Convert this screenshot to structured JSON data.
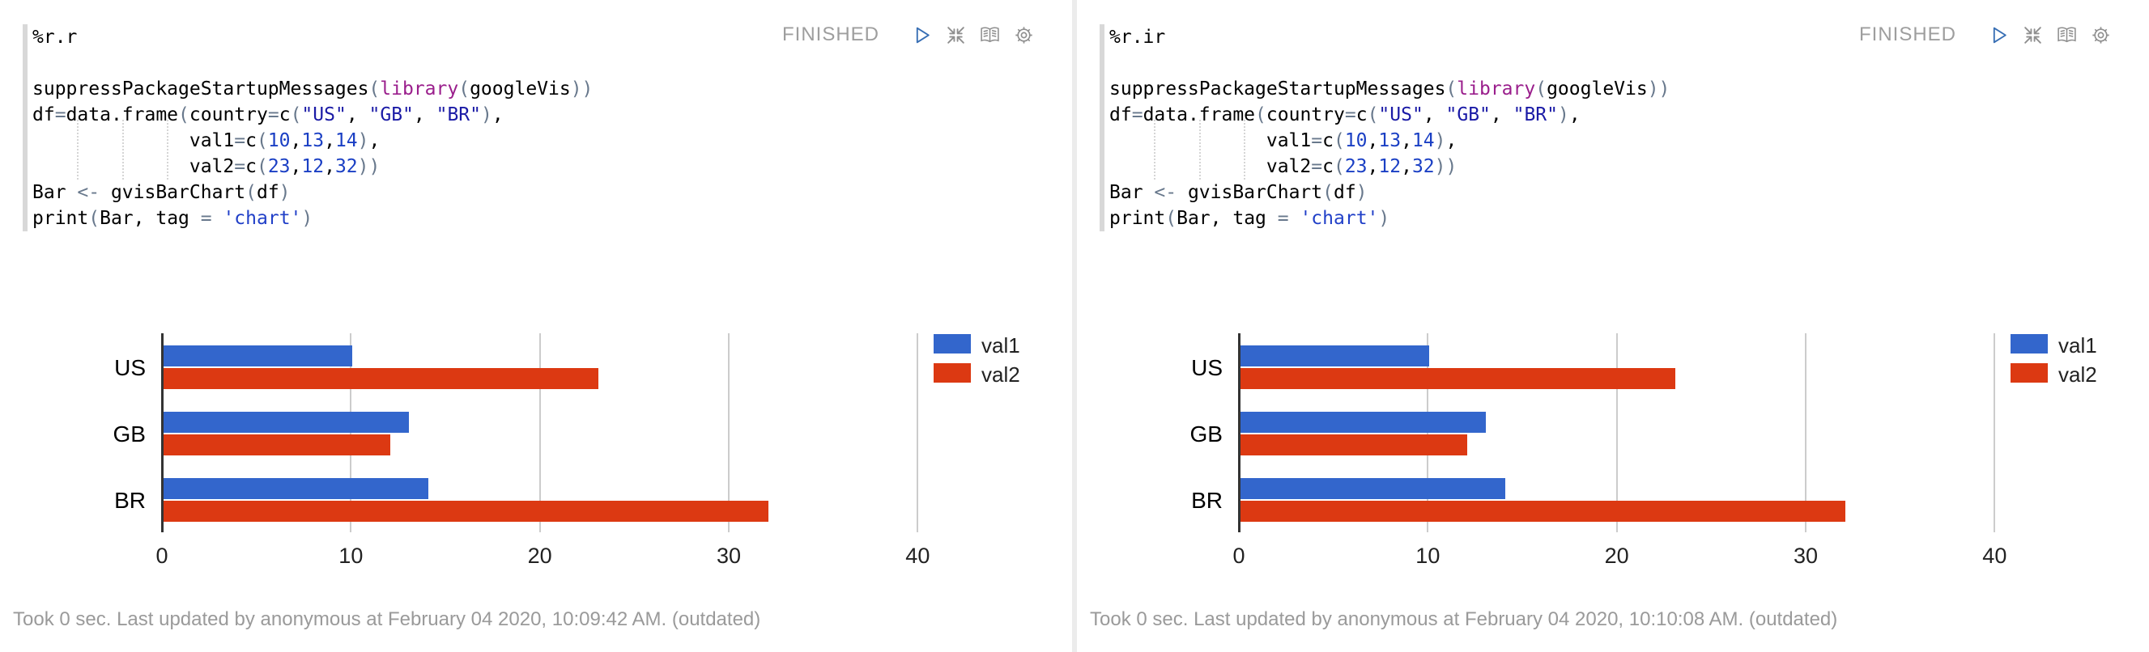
{
  "paragraphs": [
    {
      "title": "%r.r",
      "status": "FINISHED",
      "footer": "Took 0 sec. Last updated by anonymous at February 04 2020, 10:09:42 AM. (outdated)"
    },
    {
      "title": "%r.ir",
      "status": "FINISHED",
      "footer": "Took 0 sec. Last updated by anonymous at February 04 2020, 10:10:08 AM. (outdated)"
    }
  ],
  "toolbar_icons": [
    {
      "name": "run-icon",
      "shape": "play-triangle"
    },
    {
      "name": "shrink-icon",
      "shape": "arrows-to-center"
    },
    {
      "name": "report-icon",
      "shape": "open-book"
    },
    {
      "name": "settings-icon",
      "shape": "gear"
    }
  ],
  "colors": {
    "bar_blue": "#3366CC",
    "bar_red": "#DC3912",
    "status_text": "#9E9E9E",
    "play_icon": "#376EB4",
    "icon_gray": "#8F8F8F",
    "divider": "#ECECEC",
    "editor_strip": "#D8D8D8",
    "syntax": {
      "p": "#000000",
      "kw": "#9A1E8C",
      "paren": "#68788C",
      "op": "#68788C",
      "str": "#1A1AA6",
      "str2": "#2140C8",
      "num": "#1A3FC4"
    }
  },
  "code": {
    "lines": [
      [],
      [
        [
          "p",
          "suppressPackageStartupMessages"
        ],
        [
          "paren",
          "("
        ],
        [
          "kw",
          "library"
        ],
        [
          "paren",
          "("
        ],
        [
          "p",
          "googleVis"
        ],
        [
          "paren",
          "))"
        ]
      ],
      [
        [
          "p",
          "df"
        ],
        [
          "op",
          "="
        ],
        [
          "p",
          "data.frame"
        ],
        [
          "paren",
          "("
        ],
        [
          "p",
          "country"
        ],
        [
          "op",
          "="
        ],
        [
          "p",
          "c"
        ],
        [
          "paren",
          "("
        ],
        [
          "str",
          "\"US\""
        ],
        [
          "p",
          ", "
        ],
        [
          "str",
          "\"GB\""
        ],
        [
          "p",
          ", "
        ],
        [
          "str",
          "\"BR\""
        ],
        [
          "paren",
          ")"
        ],
        [
          "p",
          ","
        ]
      ],
      [
        [
          "p",
          "              val1"
        ],
        [
          "op",
          "="
        ],
        [
          "p",
          "c"
        ],
        [
          "paren",
          "("
        ],
        [
          "num",
          "10"
        ],
        [
          "p",
          ","
        ],
        [
          "num",
          "13"
        ],
        [
          "p",
          ","
        ],
        [
          "num",
          "14"
        ],
        [
          "paren",
          ")"
        ],
        [
          "p",
          ","
        ]
      ],
      [
        [
          "p",
          "              val2"
        ],
        [
          "op",
          "="
        ],
        [
          "p",
          "c"
        ],
        [
          "paren",
          "("
        ],
        [
          "num",
          "23"
        ],
        [
          "p",
          ","
        ],
        [
          "num",
          "12"
        ],
        [
          "p",
          ","
        ],
        [
          "num",
          "32"
        ],
        [
          "paren",
          "))"
        ]
      ],
      [
        [
          "p",
          "Bar "
        ],
        [
          "op",
          "<-"
        ],
        [
          "p",
          " gvisBarChart"
        ],
        [
          "paren",
          "("
        ],
        [
          "p",
          "df"
        ],
        [
          "paren",
          ")"
        ]
      ],
      [
        [
          "p",
          "print"
        ],
        [
          "paren",
          "("
        ],
        [
          "p",
          "Bar, tag "
        ],
        [
          "op",
          "="
        ],
        [
          "p",
          " "
        ],
        [
          "str2",
          "'chart'"
        ],
        [
          "paren",
          ")"
        ]
      ]
    ]
  },
  "chart_data": [
    {
      "type": "bar",
      "orientation": "horizontal",
      "title": "",
      "xlabel": "",
      "ylabel": "",
      "categories": [
        "US",
        "GB",
        "BR"
      ],
      "series": [
        {
          "name": "val1",
          "color": "#3366CC",
          "values": [
            10,
            13,
            14
          ]
        },
        {
          "name": "val2",
          "color": "#DC3912",
          "values": [
            23,
            12,
            32
          ]
        }
      ],
      "xticks": [
        0,
        10,
        20,
        30,
        40
      ],
      "xlim": [
        0,
        42
      ],
      "grid": true,
      "legend_position": "top-right"
    },
    {
      "type": "bar",
      "orientation": "horizontal",
      "title": "",
      "xlabel": "",
      "ylabel": "",
      "categories": [
        "US",
        "GB",
        "BR"
      ],
      "series": [
        {
          "name": "val1",
          "color": "#3366CC",
          "values": [
            10,
            13,
            14
          ]
        },
        {
          "name": "val2",
          "color": "#DC3912",
          "values": [
            23,
            12,
            32
          ]
        }
      ],
      "xticks": [
        0,
        10,
        20,
        30,
        40
      ],
      "xlim": [
        0,
        42
      ],
      "grid": true,
      "legend_position": "top-right"
    }
  ]
}
